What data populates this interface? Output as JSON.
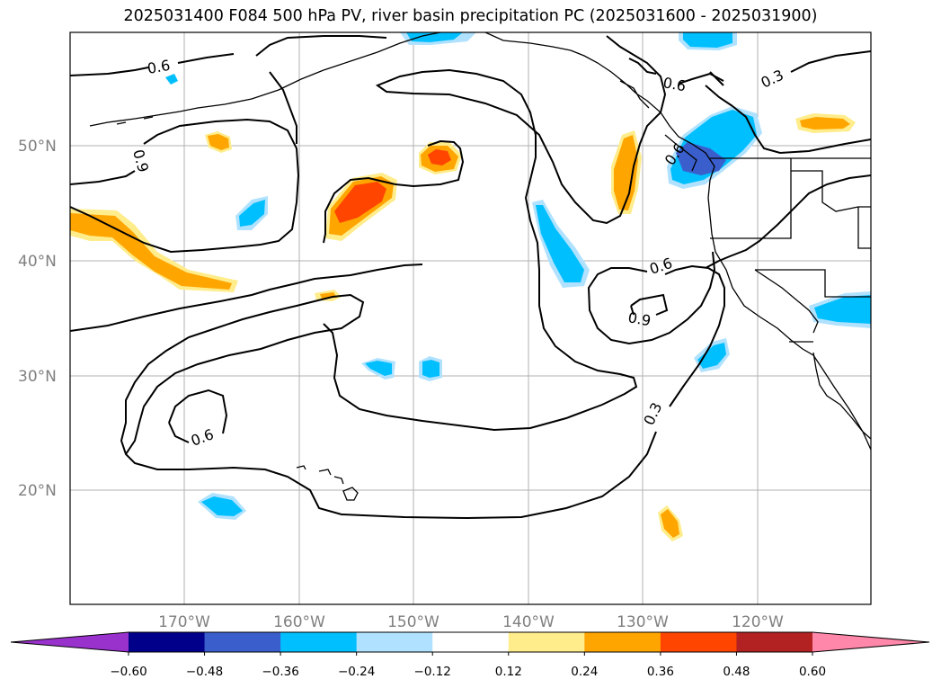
{
  "title": "2025031400 F084 500 hPa PV, river basin precipitation PC (2025031600 - 2025031900)",
  "lat_labels": [
    "50°N",
    "40°N",
    "30°N",
    "20°N"
  ],
  "lon_labels": [
    "170°W",
    "160°W",
    "150°W",
    "140°W",
    "130°W",
    "120°W"
  ],
  "contour_labels": [
    "0.6",
    "0.9",
    "0.6",
    "0.3",
    "0.6",
    "0.6",
    "0.9",
    "0.6",
    "0.3"
  ],
  "colorbar": {
    "ticks": [
      "−0.60",
      "−0.48",
      "−0.36",
      "−0.24",
      "−0.12",
      "0.12",
      "0.24",
      "0.36",
      "0.48",
      "0.60"
    ],
    "colors": [
      "#9932cc",
      "#00008b",
      "#3a5fcd",
      "#00bfff",
      "#b0e2ff",
      "#ffffff",
      "#ffec8b",
      "#ffa500",
      "#ff4500",
      "#b22222",
      "#ff88aa"
    ]
  },
  "colors": {
    "coast": "#000000",
    "grid": "#b0b0b0"
  }
}
